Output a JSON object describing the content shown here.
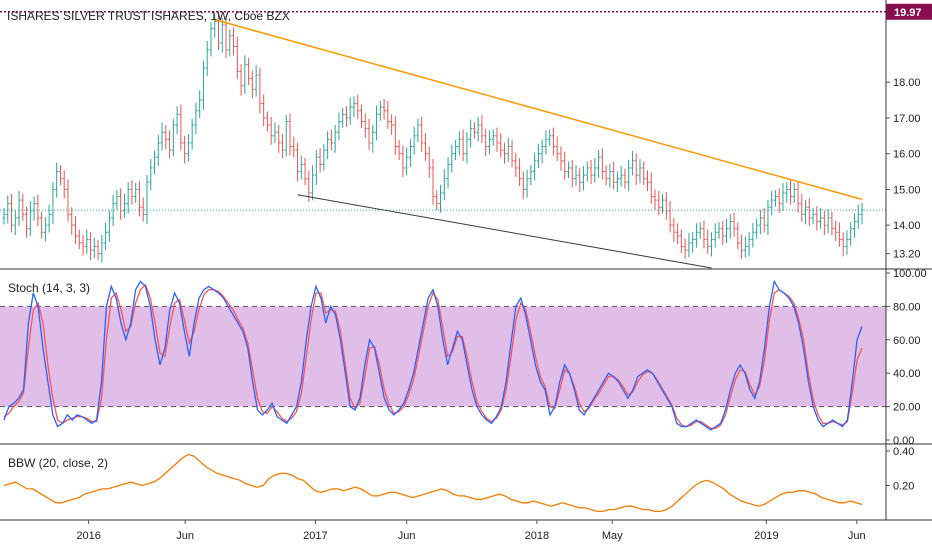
{
  "header": {
    "title": "ISHARES SILVER TRUST ISHARES, 1W, Cboe BZX"
  },
  "colors": {
    "up": "#26a69a",
    "down": "#ef5350",
    "trend_upper": "#ff9800",
    "trend_lower": "#363a45",
    "last_price_line": "#26a69a",
    "top_line": "#880e4f",
    "stoch_k": "#2962ff",
    "stoch_d": "#ff5252",
    "stoch_band": "#e1bee7",
    "bbw": "#f57c00"
  },
  "price_tag": "19.97",
  "chart_data": [
    {
      "type": "ohlc",
      "title": "ISHARES SILVER TRUST ISHARES, 1W, Cboe BZX",
      "ylim": [
        12.8,
        20.3
      ],
      "yticks": [
        "13.20",
        "14.00",
        "15.00",
        "16.00",
        "17.00",
        "18.00"
      ],
      "last_close": 14.42,
      "top_price_line": 19.97,
      "close_series": [
        14.3,
        14.6,
        14.0,
        14.2,
        14.7,
        14.3,
        13.9,
        14.4,
        14.6,
        14.2,
        13.8,
        14.0,
        14.3,
        15.0,
        15.5,
        15.3,
        15.0,
        14.3,
        14.0,
        13.7,
        13.5,
        13.4,
        13.6,
        13.3,
        13.4,
        13.2,
        13.5,
        13.8,
        14.2,
        14.6,
        14.8,
        14.4,
        14.6,
        15.0,
        14.8,
        15.0,
        14.5,
        14.3,
        15.2,
        15.6,
        15.9,
        16.3,
        16.6,
        16.4,
        16.1,
        16.8,
        17.1,
        16.3,
        16.0,
        16.3,
        16.8,
        17.2,
        17.5,
        18.4,
        18.9,
        19.5,
        19.7,
        19.1,
        19.6,
        18.9,
        19.3,
        19.0,
        18.3,
        17.9,
        18.5,
        18.1,
        17.8,
        18.2,
        17.4,
        17.0,
        16.8,
        16.5,
        16.6,
        16.3,
        16.1,
        16.9,
        16.2,
        16.1,
        15.5,
        15.7,
        15.3,
        14.9,
        15.4,
        15.9,
        15.7,
        16.1,
        16.4,
        16.3,
        16.6,
        16.9,
        17.1,
        17.0,
        17.3,
        17.4,
        17.2,
        16.9,
        16.7,
        16.3,
        16.6,
        17.1,
        17.3,
        17.2,
        16.9,
        16.8,
        16.2,
        16.0,
        15.6,
        15.9,
        16.2,
        16.5,
        16.8,
        16.3,
        16.0,
        15.6,
        14.8,
        14.6,
        14.9,
        15.3,
        15.7,
        16.0,
        16.2,
        16.4,
        16.0,
        16.4,
        16.7,
        16.6,
        16.8,
        16.5,
        16.2,
        16.4,
        16.5,
        16.3,
        16.1,
        16.0,
        16.2,
        15.8,
        15.6,
        15.3,
        15.0,
        15.3,
        15.5,
        15.8,
        16.0,
        16.2,
        16.4,
        16.5,
        16.2,
        16.0,
        15.8,
        15.5,
        15.6,
        15.3,
        15.4,
        15.2,
        15.4,
        15.6,
        15.4,
        15.6,
        15.9,
        15.5,
        15.3,
        15.5,
        15.2,
        15.3,
        15.4,
        15.2,
        15.6,
        15.8,
        15.4,
        15.6,
        15.3,
        15.2,
        14.8,
        14.7,
        14.5,
        14.7,
        14.4,
        14.0,
        13.8,
        13.7,
        13.4,
        13.3,
        13.5,
        13.6,
        13.8,
        13.9,
        13.6,
        13.4,
        13.6,
        13.8,
        13.9,
        13.7,
        13.9,
        14.1,
        13.9,
        13.5,
        13.3,
        13.4,
        13.6,
        13.8,
        14.0,
        14.2,
        14.0,
        14.5,
        14.7,
        14.8,
        14.6,
        14.9,
        15.0,
        14.8,
        15.0,
        14.6,
        14.3,
        14.5,
        14.2,
        14.3,
        14.1,
        14.2,
        14.0,
        14.2,
        13.9,
        13.8,
        13.6,
        13.4,
        13.6,
        13.9,
        14.1,
        14.3,
        14.42
      ]
    },
    {
      "type": "line",
      "title": "Stoch (14, 3, 3)",
      "ylim": [
        0,
        100
      ],
      "yticks": [
        "0.00",
        "20.00",
        "40.00",
        "60.00",
        "80.00",
        "100.00"
      ],
      "band": [
        20,
        80
      ],
      "series": [
        {
          "name": "%K",
          "values": [
            12,
            20,
            22,
            25,
            30,
            70,
            88,
            80,
            55,
            35,
            15,
            8,
            10,
            15,
            12,
            15,
            14,
            12,
            10,
            12,
            35,
            80,
            92,
            85,
            70,
            60,
            70,
            90,
            95,
            92,
            80,
            60,
            45,
            55,
            78,
            88,
            82,
            65,
            50,
            70,
            85,
            90,
            92,
            90,
            88,
            85,
            80,
            75,
            70,
            65,
            55,
            35,
            18,
            15,
            18,
            22,
            14,
            12,
            10,
            15,
            20,
            35,
            60,
            80,
            92,
            85,
            70,
            80,
            75,
            60,
            40,
            20,
            18,
            25,
            45,
            60,
            55,
            40,
            25,
            18,
            15,
            18,
            22,
            30,
            40,
            55,
            70,
            85,
            90,
            80,
            60,
            45,
            55,
            65,
            60,
            45,
            30,
            20,
            15,
            12,
            10,
            14,
            20,
            35,
            58,
            80,
            85,
            75,
            60,
            45,
            35,
            30,
            15,
            20,
            35,
            45,
            40,
            30,
            18,
            15,
            20,
            25,
            30,
            35,
            40,
            38,
            35,
            30,
            25,
            30,
            38,
            40,
            42,
            40,
            35,
            30,
            25,
            20,
            10,
            8,
            8,
            10,
            12,
            10,
            8,
            6,
            8,
            10,
            18,
            30,
            40,
            45,
            40,
            30,
            25,
            35,
            55,
            80,
            95,
            90,
            88,
            85,
            80,
            70,
            55,
            35,
            20,
            12,
            8,
            10,
            12,
            10,
            8,
            12,
            35,
            60,
            68
          ]
        },
        {
          "name": "%D",
          "values": [
            14,
            16,
            20,
            23,
            28,
            55,
            78,
            82,
            70,
            45,
            25,
            12,
            10,
            12,
            13,
            14,
            14,
            13,
            11,
            11,
            25,
            60,
            85,
            88,
            78,
            65,
            68,
            82,
            90,
            93,
            85,
            70,
            52,
            50,
            68,
            82,
            84,
            72,
            58,
            65,
            78,
            87,
            90,
            90,
            89,
            86,
            82,
            78,
            72,
            67,
            58,
            42,
            25,
            17,
            16,
            20,
            17,
            13,
            11,
            13,
            17,
            28,
            50,
            72,
            88,
            88,
            76,
            78,
            77,
            65,
            45,
            25,
            19,
            22,
            38,
            55,
            56,
            45,
            30,
            21,
            16,
            17,
            20,
            27,
            36,
            50,
            65,
            80,
            88,
            84,
            67,
            50,
            53,
            62,
            62,
            50,
            35,
            23,
            17,
            13,
            11,
            13,
            18,
            30,
            50,
            72,
            82,
            78,
            65,
            50,
            38,
            32,
            20,
            19,
            30,
            42,
            40,
            32,
            22,
            17,
            19,
            24,
            28,
            33,
            38,
            38,
            36,
            32,
            27,
            29,
            35,
            39,
            41,
            40,
            36,
            31,
            26,
            21,
            13,
            9,
            8,
            9,
            11,
            11,
            9,
            7,
            7,
            9,
            15,
            26,
            36,
            42,
            41,
            33,
            27,
            32,
            48,
            72,
            88,
            90,
            88,
            86,
            82,
            73,
            60,
            40,
            24,
            15,
            10,
            10,
            11,
            10,
            9,
            11,
            28,
            48,
            55
          ]
        }
      ]
    },
    {
      "type": "line",
      "title": "BBW (20, close, 2)",
      "ylim": [
        0,
        0.4
      ],
      "yticks": [
        "0.20",
        "0.40"
      ],
      "series": [
        {
          "name": "BBW",
          "values": [
            0.2,
            0.21,
            0.22,
            0.2,
            0.18,
            0.18,
            0.16,
            0.14,
            0.12,
            0.1,
            0.1,
            0.11,
            0.12,
            0.13,
            0.15,
            0.16,
            0.17,
            0.18,
            0.18,
            0.19,
            0.2,
            0.21,
            0.22,
            0.21,
            0.2,
            0.21,
            0.22,
            0.24,
            0.27,
            0.3,
            0.33,
            0.36,
            0.38,
            0.37,
            0.34,
            0.31,
            0.29,
            0.27,
            0.26,
            0.25,
            0.24,
            0.23,
            0.21,
            0.2,
            0.19,
            0.2,
            0.24,
            0.26,
            0.27,
            0.27,
            0.26,
            0.24,
            0.23,
            0.2,
            0.17,
            0.16,
            0.17,
            0.18,
            0.18,
            0.17,
            0.18,
            0.19,
            0.18,
            0.16,
            0.14,
            0.14,
            0.15,
            0.16,
            0.16,
            0.15,
            0.14,
            0.13,
            0.14,
            0.15,
            0.16,
            0.17,
            0.18,
            0.17,
            0.15,
            0.14,
            0.14,
            0.13,
            0.12,
            0.12,
            0.13,
            0.14,
            0.15,
            0.14,
            0.12,
            0.11,
            0.1,
            0.1,
            0.11,
            0.1,
            0.09,
            0.08,
            0.09,
            0.1,
            0.09,
            0.08,
            0.07,
            0.07,
            0.06,
            0.05,
            0.05,
            0.06,
            0.06,
            0.07,
            0.08,
            0.08,
            0.07,
            0.06,
            0.06,
            0.05,
            0.05,
            0.06,
            0.08,
            0.11,
            0.14,
            0.17,
            0.2,
            0.22,
            0.23,
            0.22,
            0.2,
            0.18,
            0.15,
            0.13,
            0.11,
            0.1,
            0.09,
            0.08,
            0.09,
            0.11,
            0.13,
            0.15,
            0.16,
            0.16,
            0.17,
            0.17,
            0.16,
            0.15,
            0.13,
            0.12,
            0.11,
            0.1,
            0.1,
            0.11,
            0.1,
            0.09
          ]
        }
      ]
    }
  ],
  "x_axis": {
    "labels": [
      {
        "text": "2016",
        "t": 0.1
      },
      {
        "text": "Jun",
        "t": 0.209
      },
      {
        "text": "2017",
        "t": 0.356
      },
      {
        "text": "Jun",
        "t": 0.459
      },
      {
        "text": "2018",
        "t": 0.606
      },
      {
        "text": "May",
        "t": 0.691
      },
      {
        "text": "2019",
        "t": 0.865
      },
      {
        "text": "Jun",
        "t": 0.967
      }
    ]
  }
}
